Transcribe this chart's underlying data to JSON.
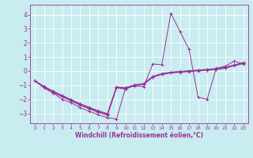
{
  "xlabel": "Windchill (Refroidissement éolien,°C)",
  "background_color": "#c8ecf0",
  "line_color": "#993399",
  "grid_color": "#ffffff",
  "xlim": [
    -0.5,
    23.5
  ],
  "ylim": [
    -3.7,
    4.7
  ],
  "xticks": [
    0,
    1,
    2,
    3,
    4,
    5,
    6,
    7,
    8,
    9,
    10,
    11,
    12,
    13,
    14,
    15,
    16,
    17,
    18,
    19,
    20,
    21,
    22,
    23
  ],
  "yticks": [
    -3,
    -2,
    -1,
    0,
    1,
    2,
    3,
    4
  ],
  "series": [
    [
      -0.7,
      -1.2,
      -1.55,
      -2.0,
      -2.25,
      -2.6,
      -2.85,
      -3.1,
      -3.3,
      -3.4,
      -1.2,
      -1.05,
      -1.1,
      0.5,
      0.45,
      4.1,
      2.8,
      1.55,
      -1.85,
      -2.0,
      0.2,
      0.35,
      0.7,
      0.5
    ],
    [
      -0.7,
      -1.1,
      -1.45,
      -1.75,
      -2.05,
      -2.35,
      -2.6,
      -2.85,
      -3.05,
      -1.15,
      -1.2,
      -1.0,
      -0.9,
      -0.4,
      -0.2,
      -0.1,
      -0.05,
      0.0,
      0.05,
      0.1,
      0.15,
      0.25,
      0.4,
      0.55
    ],
    [
      -0.7,
      -1.12,
      -1.48,
      -1.8,
      -2.1,
      -2.4,
      -2.65,
      -2.9,
      -3.1,
      -1.18,
      -1.25,
      -1.02,
      -0.92,
      -0.42,
      -0.22,
      -0.12,
      -0.07,
      -0.02,
      0.03,
      0.08,
      0.13,
      0.22,
      0.42,
      0.57
    ],
    [
      -0.7,
      -1.14,
      -1.5,
      -1.82,
      -2.12,
      -2.42,
      -2.68,
      -2.93,
      -3.12,
      -1.2,
      -1.27,
      -1.04,
      -0.94,
      -0.44,
      -0.24,
      -0.14,
      -0.09,
      -0.04,
      0.01,
      0.06,
      0.11,
      0.2,
      0.38,
      0.52
    ],
    [
      -0.7,
      -1.08,
      -1.42,
      -1.72,
      -2.02,
      -2.32,
      -2.57,
      -2.82,
      -3.02,
      -1.12,
      -1.18,
      -0.98,
      -0.88,
      -0.38,
      -0.18,
      -0.08,
      -0.03,
      0.02,
      0.07,
      0.12,
      0.17,
      0.28,
      0.44,
      0.6
    ]
  ]
}
